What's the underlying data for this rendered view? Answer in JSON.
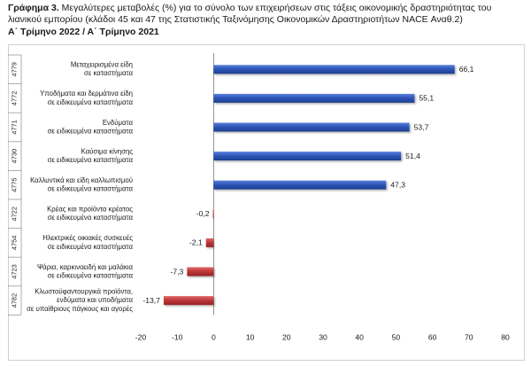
{
  "header": {
    "figure_label": "Γράφημα 3.",
    "title_text": " Μεγαλύτερες μεταβολές (%) για το σύνολο των επιχειρήσεων στις τάξεις οικονομικής δραστηριότητας του λιανικού εμπορίου (κλάδοι 45 και 47 της Στατιστικής Ταξινόμησης Οικονομικών Δραστηριοτήτων NACE Αναθ.2)",
    "subtitle": "Α΄ Τρίμηνο 2022 / Α΄ Τρίμηνο 2021"
  },
  "chart_data": {
    "type": "bar",
    "orientation": "horizontal",
    "categories": [
      {
        "code": "4779",
        "label": [
          "Μεταχειρισμένα είδη",
          "σε καταστήματα"
        ]
      },
      {
        "code": "4772",
        "label": [
          "Υποδήματα και δερμάτινα είδη",
          "σε ειδικευμένα καταστήματα"
        ]
      },
      {
        "code": "4771",
        "label": [
          "Ενδύματα",
          "σε ειδικευμένα καταστήματα"
        ]
      },
      {
        "code": "4730",
        "label": [
          "Καύσιμα κίνησης",
          "σε ειδικευμένα καταστήματα"
        ]
      },
      {
        "code": "4775",
        "label": [
          "Καλλυντικά και είδη καλλωπισμού",
          "σε ειδικευμένα καταστήματα"
        ]
      },
      {
        "code": "4722",
        "label": [
          "Κρέας και προϊόντα κρέατος",
          "σε ειδικευμένα καταστήματα"
        ]
      },
      {
        "code": "4754",
        "label": [
          "Ηλεκτρικές οικιακές συσκευές",
          "σε ειδικευμένα καταστήματα"
        ]
      },
      {
        "code": "4723",
        "label": [
          "Ψάρια, καρκινοειδή και μαλάκια",
          "σε ειδικευμένα καταστήματα"
        ]
      },
      {
        "code": "4782",
        "label": [
          "Κλωστοϋφαντουργικά προϊόντα,",
          "ενδύματα και υποδήματα",
          "σε υπαίθριους πάγκους και αγορές"
        ]
      }
    ],
    "values": [
      66.1,
      55.1,
      53.7,
      51.4,
      47.3,
      -0.2,
      -2.1,
      -7.3,
      -13.7
    ],
    "value_labels": [
      "66,1",
      "55,1",
      "53,7",
      "51,4",
      "47,3",
      "-0,2",
      "-2,1",
      "-7,3",
      "-13,7"
    ],
    "x_ticks": [
      "-20",
      "-10",
      "0",
      "10",
      "20",
      "30",
      "40",
      "50",
      "60",
      "70",
      "80"
    ],
    "xlim": [
      -20,
      80
    ],
    "colors": {
      "positive": "#2e56b8",
      "negative": "#c0393b"
    },
    "grid": false,
    "legend": "none"
  }
}
